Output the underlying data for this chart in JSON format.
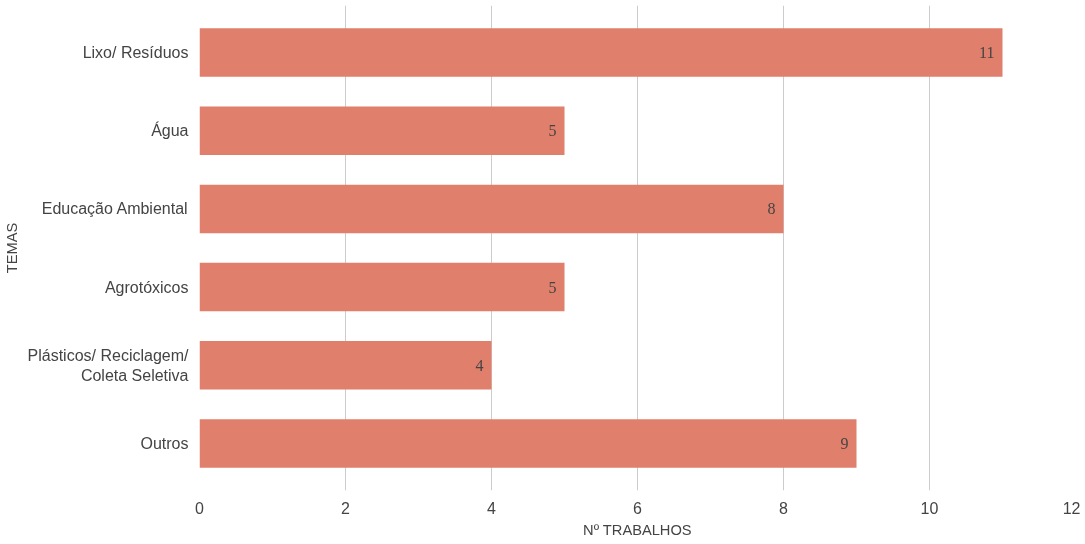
{
  "chart_data": {
    "type": "bar",
    "orientation": "horizontal",
    "categories": [
      "Lixo/ Resíduos",
      "Água",
      "Educação Ambiental",
      "Agrotóxicos",
      "Plásticos/ Reciclagem/\nColeta Seletiva",
      "Outros"
    ],
    "values": [
      11,
      5,
      8,
      5,
      4,
      9
    ],
    "color": "#e07f6b",
    "xlim": [
      0,
      12
    ],
    "xticks": [
      0,
      2,
      4,
      6,
      8,
      10,
      12
    ],
    "grid": "x",
    "data_labels": true,
    "xlabel": "Nº TRABALHOS",
    "ylabel": "TEMAS"
  }
}
